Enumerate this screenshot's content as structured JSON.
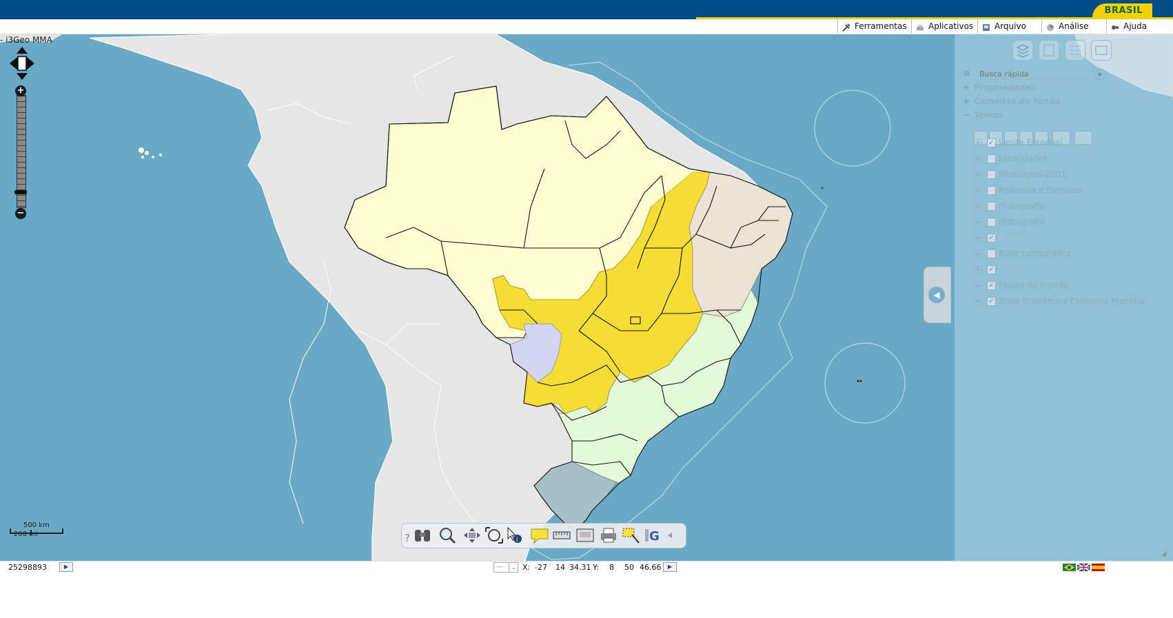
{
  "gov": {
    "brasil_label": "BRASIL"
  },
  "menu": [
    {
      "label": "Ferramentas",
      "icon": "tools-icon"
    },
    {
      "label": "Aplicativos",
      "icon": "apps-icon"
    },
    {
      "label": "Arquivo",
      "icon": "file-icon"
    },
    {
      "label": "Análise",
      "icon": "analysis-icon"
    },
    {
      "label": "Ajuda",
      "icon": "help-icon"
    }
  ],
  "map": {
    "title": "- i3Geo MMA"
  },
  "panel": {
    "search_placeholder": "Busca rápida",
    "sections": {
      "propriedades": "Propriedades",
      "camadas": "Camadas de fundo",
      "temas": "Temas"
    },
    "layers": [
      {
        "label": "Limite Estadual",
        "checked": true,
        "dim": false
      },
      {
        "label": "Localidades",
        "checked": false,
        "dim": false
      },
      {
        "label": "Municipios-2001",
        "checked": false,
        "dim": false
      },
      {
        "label": "Rodovias e ferrovias",
        "checked": false,
        "dim": false
      },
      {
        "label": "Hidrografia",
        "checked": false,
        "dim": false
      },
      {
        "label": "Hidrografia",
        "checked": false,
        "dim": false
      },
      {
        "label": "Bioma",
        "checked": true,
        "dim": true
      },
      {
        "label": "Base cartográfica",
        "checked": false,
        "dim": false
      },
      {
        "label": "Brasil",
        "checked": true,
        "dim": true
      },
      {
        "label": "Países do mundo",
        "checked": true,
        "dim": false
      },
      {
        "label": "Zona Econômica Exclusiva Marinha",
        "checked": true,
        "dim": false
      }
    ]
  },
  "scale_bar": {
    "km": "500 km",
    "mi": "200 mi"
  },
  "status": {
    "escala": "25298893",
    "coords": {
      "x_label": "X:",
      "x_deg": "-27",
      "x_min": "14",
      "x_sec": "34.31",
      "y_label": "Y:",
      "y_deg": "8",
      "y_min": "50",
      "y_sec": "46.66"
    },
    "select_value": "---"
  },
  "colors": {
    "gov_blue": "#004c86",
    "gov_yellow": "#f5d100",
    "ocean": "#68a9c5",
    "land": "#e6e6e6",
    "amazon": "#fffed2",
    "cerrado": "#f6dd33",
    "caatinga": "#ede3d4",
    "mata_atlantica": "#e3fbd9",
    "pantanal": "#d4d5f3",
    "pampa": "#a5c1c7"
  }
}
